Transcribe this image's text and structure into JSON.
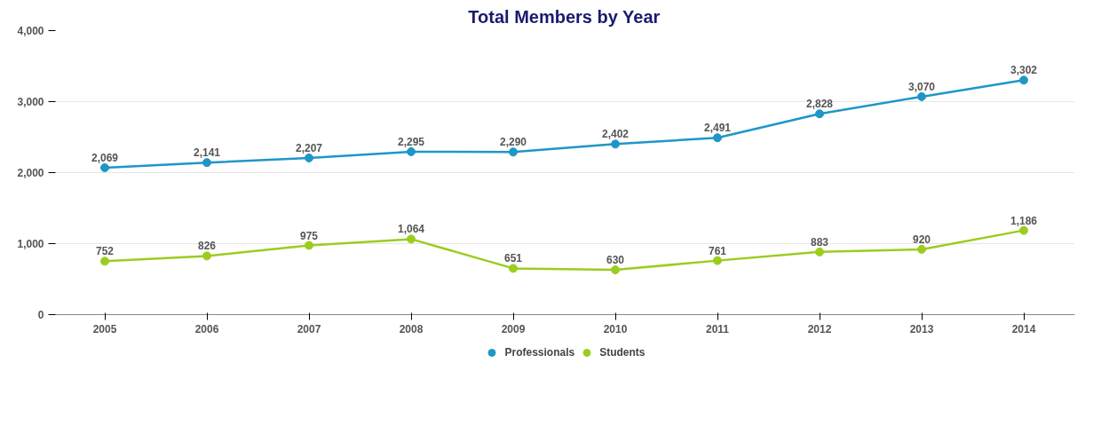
{
  "chart_data": {
    "type": "line",
    "title": "Total Members by Year",
    "categories": [
      "2005",
      "2006",
      "2007",
      "2008",
      "2009",
      "2010",
      "2011",
      "2012",
      "2013",
      "2014"
    ],
    "series": [
      {
        "name": "Professionals",
        "color": "#1f96c8",
        "values": [
          2069,
          2141,
          2207,
          2295,
          2290,
          2402,
          2491,
          2828,
          3070,
          3302
        ],
        "value_labels": [
          "2,069",
          "2,141",
          "2,207",
          "2,295",
          "2,290",
          "2,402",
          "2,491",
          "2,828",
          "3,070",
          "3,302"
        ]
      },
      {
        "name": "Students",
        "color": "#9acd1e",
        "values": [
          752,
          826,
          975,
          1064,
          651,
          630,
          761,
          883,
          920,
          1186
        ],
        "value_labels": [
          "752",
          "826",
          "975",
          "1,064",
          "651",
          "630",
          "761",
          "883",
          "920",
          "1,186"
        ]
      }
    ],
    "ylim": [
      0,
      4000
    ],
    "yticks": [
      0,
      {
        "value": 1000,
        "label": "1,000"
      },
      {
        "value": 2000,
        "label": "2,000"
      },
      {
        "value": 3000,
        "label": "3,000"
      },
      {
        "value": 4000,
        "label": "4,000"
      }
    ],
    "grid": "y",
    "legend": "bottom",
    "marker": "circle"
  }
}
